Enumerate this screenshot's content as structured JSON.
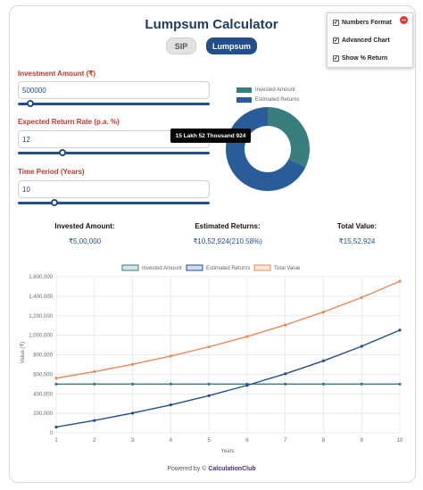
{
  "app": {
    "title": "Lumpsum Calculator",
    "tabs": [
      {
        "label": "SIP"
      },
      {
        "label": "Lumpsum"
      }
    ]
  },
  "options": [
    {
      "label": "Numbers Format",
      "checked": true
    },
    {
      "label": "Advanced Chart",
      "checked": true
    },
    {
      "label": "Show % Return",
      "checked": true
    }
  ],
  "inputs": {
    "investment": {
      "label": "Investment Amount (₹)",
      "value": "500000",
      "slider_fraction": 0.06
    },
    "rate": {
      "label": "Expected Return Rate (p.a. %)",
      "value": "12",
      "slider_fraction": 0.22
    },
    "period": {
      "label": "Time Period (Years)",
      "value": "10",
      "slider_fraction": 0.18
    }
  },
  "donut": {
    "legend": [
      {
        "label": "Invested Amount",
        "color": "#3a7d7e"
      },
      {
        "label": "Estimated Returns",
        "color": "#2a5c9a"
      }
    ],
    "tooltip": "15 Lakh 52 Thousand 924"
  },
  "summary": {
    "invested_label": "Invested Amount:",
    "invested_value": "₹5,00,000",
    "returns_label": "Estimated Returns:",
    "returns_value": "₹10,52,924(210.58%)",
    "total_label": "Total Value:",
    "total_value": "₹15,52,924"
  },
  "chart_data": {
    "type": "line",
    "x": [
      1,
      2,
      3,
      4,
      5,
      6,
      7,
      8,
      9,
      10
    ],
    "xlabel": "Years",
    "ylabel": "Value (₹)",
    "ylim": [
      0,
      1600000
    ],
    "yticks": [
      "0",
      "200,000",
      "400,000",
      "600,000",
      "800,000",
      "1,000,000",
      "1,200,000",
      "1,400,000",
      "1,600,000"
    ],
    "grid": true,
    "legend_position": "top",
    "series": [
      {
        "name": "Invested Amount",
        "color": "#3a7d7e",
        "values": [
          500000,
          500000,
          500000,
          500000,
          500000,
          500000,
          500000,
          500000,
          500000,
          500000
        ]
      },
      {
        "name": "Estimated Returns",
        "color": "#234e8c",
        "values": [
          60000,
          127200,
          202464,
          286760,
          381171,
          486911,
          605340,
          737981,
          886539,
          1052924
        ]
      },
      {
        "name": "Total Value",
        "color": "#e8895a",
        "values": [
          560000,
          627200,
          702464,
          786760,
          881171,
          986911,
          1105340,
          1237981,
          1386539,
          1552924
        ]
      }
    ]
  },
  "footer": {
    "prefix": "Powered by © ",
    "brand": "CalculationClub"
  }
}
